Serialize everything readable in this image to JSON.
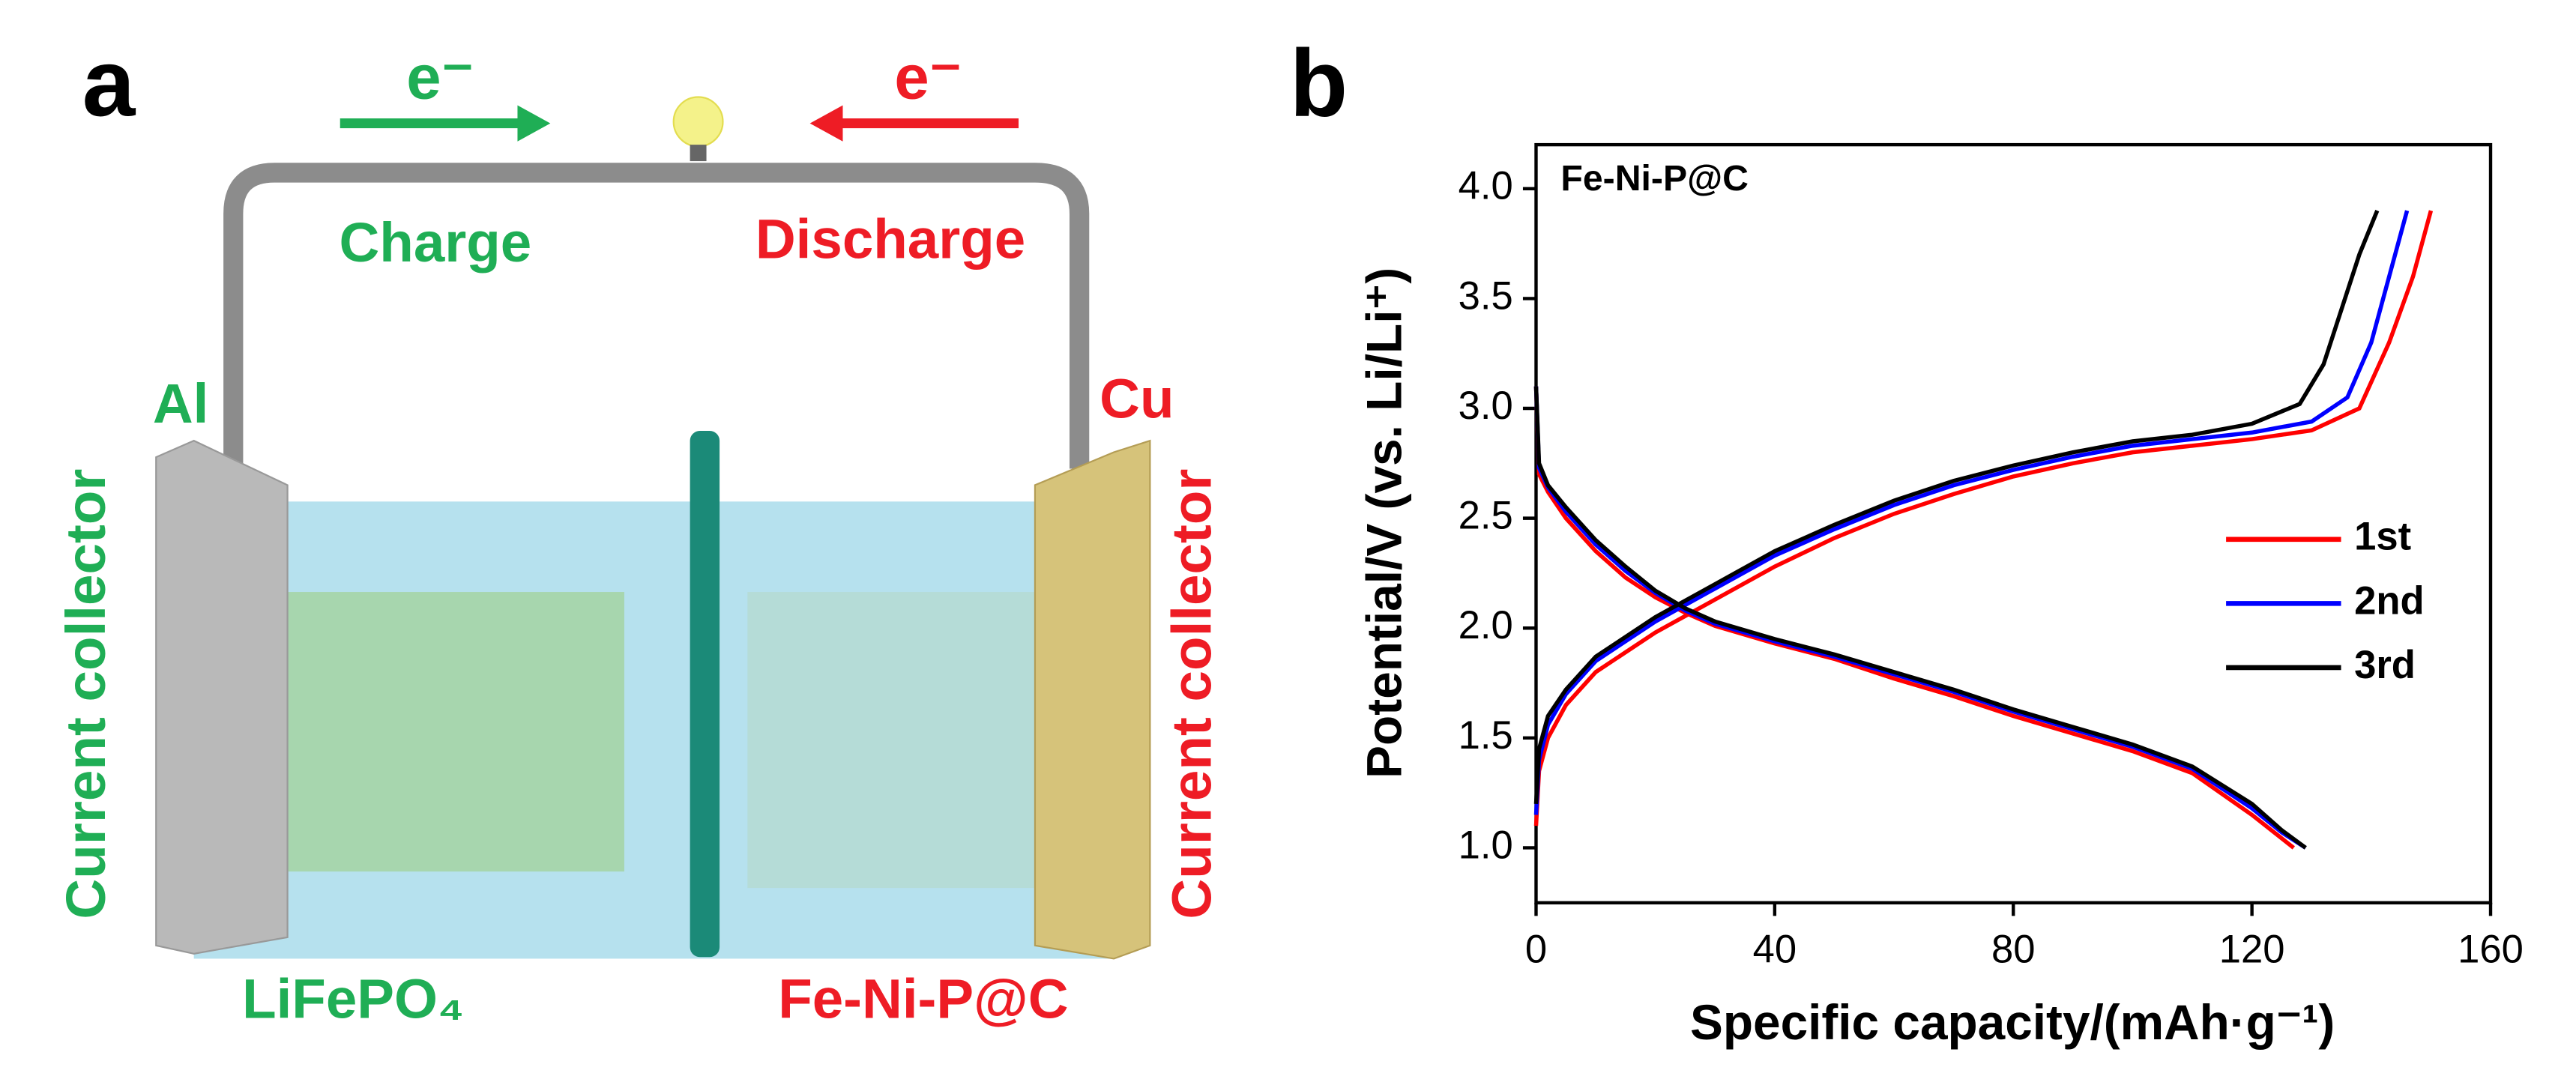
{
  "panel_a": {
    "label": "a",
    "electron_left": "e⁻",
    "electron_right": "e⁻",
    "charge": "Charge",
    "discharge": "Discharge",
    "al": "Al",
    "cu": "Cu",
    "collector_left": "Current collector",
    "collector_right": "Current collector",
    "cathode": "LiFePO₄",
    "anode": "Fe-Ni-P@C"
  },
  "chart_data": {
    "type": "line",
    "panel_label": "b",
    "annotation": "Fe-Ni-P@C",
    "x_label": "Specific capacity/(mAh·g⁻¹)",
    "y_label": "Potential/V (vs. Li/Li⁺)",
    "xlim": [
      0,
      160
    ],
    "xticks": [
      0,
      40,
      80,
      120,
      160
    ],
    "ylim": [
      0.75,
      4.2
    ],
    "yticks": [
      {
        "value": 1,
        "label": "1.0"
      },
      {
        "value": 1.5,
        "label": "1.5"
      },
      {
        "value": 2,
        "label": "2.0"
      },
      {
        "value": 2.5,
        "label": "2.5"
      },
      {
        "value": 3,
        "label": "3.0"
      },
      {
        "value": 3.5,
        "label": "3.5"
      },
      {
        "value": 4,
        "label": "4.0"
      }
    ],
    "legend": "right",
    "series": [
      {
        "name": "1st",
        "color": "#ff0000",
        "x": [
          0,
          0.5,
          2,
          5,
          10,
          15,
          20,
          25,
          30,
          40,
          50,
          60,
          70,
          80,
          90,
          100,
          110,
          120,
          127,
          null,
          0,
          0.5,
          2,
          5,
          10,
          20,
          30,
          40,
          50,
          60,
          70,
          80,
          90,
          100,
          110,
          120,
          130,
          138,
          143,
          147,
          150
        ],
        "values": [
          3.1,
          2.7,
          2.62,
          2.5,
          2.35,
          2.23,
          2.14,
          2.07,
          2.01,
          1.93,
          1.86,
          1.77,
          1.69,
          1.6,
          1.52,
          1.44,
          1.34,
          1.15,
          1.0,
          null,
          1.1,
          1.35,
          1.5,
          1.65,
          1.8,
          1.98,
          2.13,
          2.28,
          2.41,
          2.52,
          2.61,
          2.69,
          2.75,
          2.8,
          2.83,
          2.86,
          2.9,
          3.0,
          3.3,
          3.6,
          3.9
        ]
      },
      {
        "name": "2nd",
        "color": "#0000ff",
        "x": [
          0,
          0.5,
          2,
          5,
          10,
          15,
          20,
          25,
          30,
          40,
          50,
          60,
          70,
          80,
          90,
          100,
          110,
          120,
          125,
          129,
          null,
          0,
          0.5,
          2,
          5,
          10,
          20,
          30,
          40,
          50,
          60,
          70,
          80,
          90,
          100,
          110,
          120,
          130,
          136,
          140,
          143,
          146
        ],
        "values": [
          3.1,
          2.73,
          2.64,
          2.53,
          2.38,
          2.26,
          2.16,
          2.08,
          2.02,
          1.94,
          1.87,
          1.79,
          1.71,
          1.62,
          1.54,
          1.46,
          1.36,
          1.18,
          1.07,
          1.0,
          null,
          1.15,
          1.4,
          1.56,
          1.7,
          1.85,
          2.03,
          2.18,
          2.33,
          2.45,
          2.56,
          2.65,
          2.72,
          2.78,
          2.83,
          2.86,
          2.89,
          2.94,
          3.05,
          3.3,
          3.6,
          3.9
        ]
      },
      {
        "name": "3rd",
        "color": "#000000",
        "x": [
          0,
          0.5,
          2,
          5,
          10,
          15,
          20,
          25,
          30,
          40,
          50,
          60,
          70,
          80,
          90,
          100,
          110,
          120,
          125,
          129,
          null,
          0,
          0.5,
          2,
          5,
          10,
          20,
          30,
          40,
          50,
          60,
          70,
          80,
          90,
          100,
          110,
          120,
          128,
          132,
          135,
          138,
          141
        ],
        "values": [
          3.1,
          2.75,
          2.65,
          2.55,
          2.4,
          2.28,
          2.17,
          2.09,
          2.03,
          1.95,
          1.88,
          1.8,
          1.72,
          1.63,
          1.55,
          1.47,
          1.37,
          1.2,
          1.08,
          1.0,
          null,
          1.2,
          1.45,
          1.6,
          1.72,
          1.87,
          2.05,
          2.2,
          2.35,
          2.47,
          2.58,
          2.67,
          2.74,
          2.8,
          2.85,
          2.88,
          2.93,
          3.02,
          3.2,
          3.45,
          3.7,
          3.9
        ]
      }
    ]
  }
}
